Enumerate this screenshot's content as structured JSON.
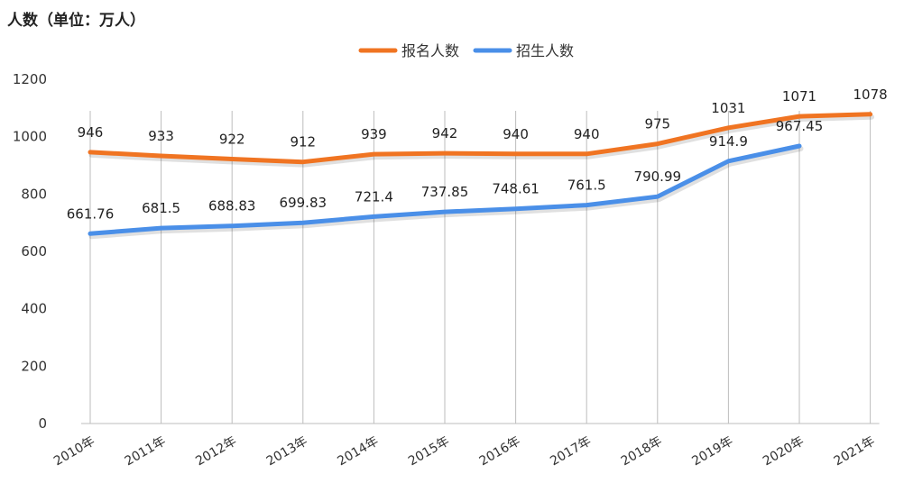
{
  "unit_label": "人数（单位：万人）",
  "chart_data": {
    "type": "line",
    "title": "",
    "xlabel": "",
    "ylabel": "",
    "unit": "人数（单位：万人）",
    "categories": [
      "2010年",
      "2011年",
      "2012年",
      "2013年",
      "2014年",
      "2015年",
      "2016年",
      "2017年",
      "2018年",
      "2019年",
      "2020年",
      "2021年"
    ],
    "ylim": [
      0,
      1200
    ],
    "yticks": [
      0,
      200,
      400,
      600,
      800,
      1000,
      1200
    ],
    "grid": "vertical lines",
    "legend_position": "top-center",
    "series": [
      {
        "name": "报名人数",
        "color": "#f07422",
        "values": [
          946,
          933,
          922,
          912,
          939,
          942,
          940,
          940,
          975,
          1031,
          1071,
          1078
        ],
        "labels": [
          "946",
          "933",
          "922",
          "912",
          "939",
          "942",
          "940",
          "940",
          "975",
          "1031",
          "1071",
          "1078"
        ]
      },
      {
        "name": "招生人数",
        "color": "#4a8fe8",
        "values": [
          661.76,
          681.5,
          688.83,
          699.83,
          721.4,
          737.85,
          748.61,
          761.5,
          790.99,
          914.9,
          967.45,
          null
        ],
        "labels": [
          "661.76",
          "681.5",
          "688.83",
          "699.83",
          "721.4",
          "737.85",
          "748.61",
          "761.5",
          "790.99",
          "914.9",
          "967.45",
          null
        ]
      }
    ]
  }
}
